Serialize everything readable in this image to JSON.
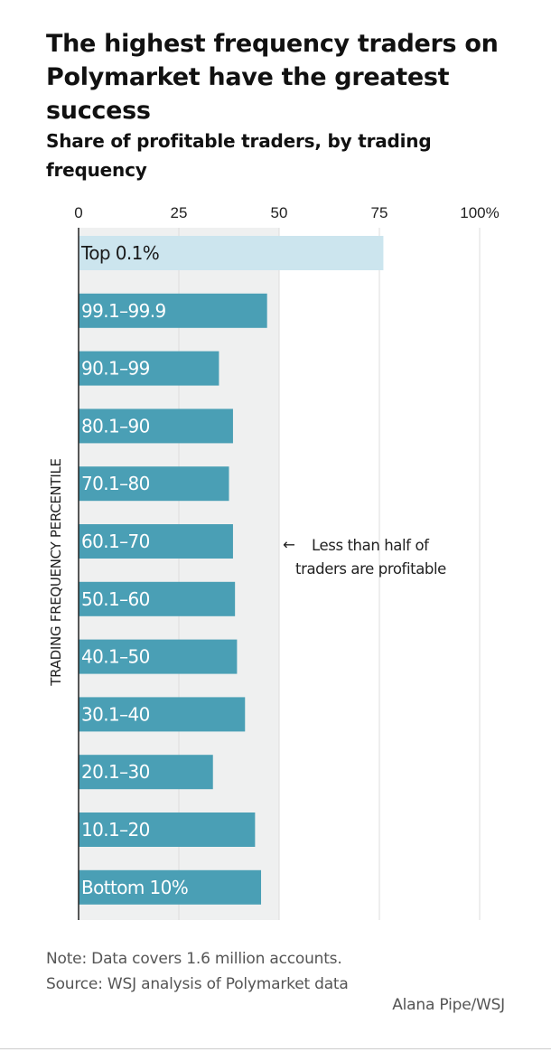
{
  "title": "The highest frequency traders on Polymarket have the greatest success",
  "subtitle": "Share of profitable traders, by trading frequency",
  "note": "Note: Data covers 1.6 million accounts.",
  "source": "Source: WSJ analysis of Polymarket data",
  "credit": "Alana Pipe/WSJ",
  "colors": {
    "bar": "#4a9fb5",
    "highlight_bar": "#cce5ee",
    "shade": "#eff0f0",
    "grid": "#dcdcdc"
  },
  "chart_data": {
    "type": "bar",
    "orientation": "horizontal",
    "title": "The highest frequency traders on Polymarket have the greatest success",
    "subtitle": "Share of profitable traders, by trading frequency",
    "ylabel": "TRADING FREQUENCY PERCENTILE",
    "xlim": [
      0,
      100
    ],
    "ticks": [
      {
        "value": 0,
        "label": "0"
      },
      {
        "value": 25,
        "label": "25"
      },
      {
        "value": 50,
        "label": "50"
      },
      {
        "value": 75,
        "label": "75"
      },
      {
        "value": 100,
        "label": "100%"
      }
    ],
    "shaded_range": [
      0,
      50
    ],
    "grid": true,
    "categories": [
      "Top 0.1%",
      "99.1–99.9",
      "90.1–99",
      "80.1–90",
      "70.1–80",
      "60.1–70",
      "50.1–60",
      "40.1–50",
      "30.1–40",
      "20.1–30",
      "10.1–20",
      "Bottom 10%"
    ],
    "values": [
      76,
      47,
      35,
      38.5,
      37.5,
      38.5,
      39,
      39.5,
      41.5,
      33.5,
      44,
      45.5
    ],
    "highlight": [
      true,
      false,
      false,
      false,
      false,
      false,
      false,
      false,
      false,
      false,
      false,
      false
    ],
    "annotation": {
      "arrow": "←",
      "lines": [
        "Less than half of",
        "traders are profitable"
      ]
    }
  }
}
